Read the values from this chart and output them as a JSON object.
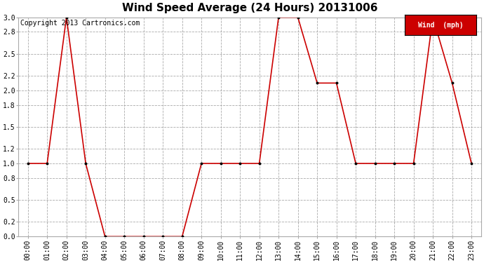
{
  "title": "Wind Speed Average (24 Hours) 20131006",
  "copyright": "Copyright 2013 Cartronics.com",
  "legend_label": "Wind  (mph)",
  "x_labels": [
    "00:00",
    "01:00",
    "02:00",
    "03:00",
    "04:00",
    "05:00",
    "06:00",
    "07:00",
    "08:00",
    "09:00",
    "10:00",
    "11:00",
    "12:00",
    "13:00",
    "14:00",
    "15:00",
    "16:00",
    "17:00",
    "18:00",
    "19:00",
    "20:00",
    "21:00",
    "22:00",
    "23:00"
  ],
  "y_values": [
    1.0,
    1.0,
    3.0,
    1.0,
    0.0,
    0.0,
    0.0,
    0.0,
    0.0,
    1.0,
    1.0,
    1.0,
    1.0,
    3.0,
    3.0,
    2.1,
    2.1,
    1.0,
    1.0,
    1.0,
    1.0,
    3.0,
    2.1,
    1.0
  ],
  "line_color": "#cc0000",
  "marker_color": "#000000",
  "ylim": [
    0.0,
    3.0
  ],
  "yticks": [
    0.0,
    0.2,
    0.5,
    0.8,
    1.0,
    1.2,
    1.5,
    1.8,
    2.0,
    2.2,
    2.5,
    2.8,
    3.0
  ],
  "bg_color": "#ffffff",
  "plot_bg": "#ffffff",
  "legend_bg": "#cc0000",
  "legend_text_color": "#ffffff",
  "title_fontsize": 11,
  "copyright_fontsize": 7,
  "tick_fontsize": 7,
  "legend_fontsize": 7
}
